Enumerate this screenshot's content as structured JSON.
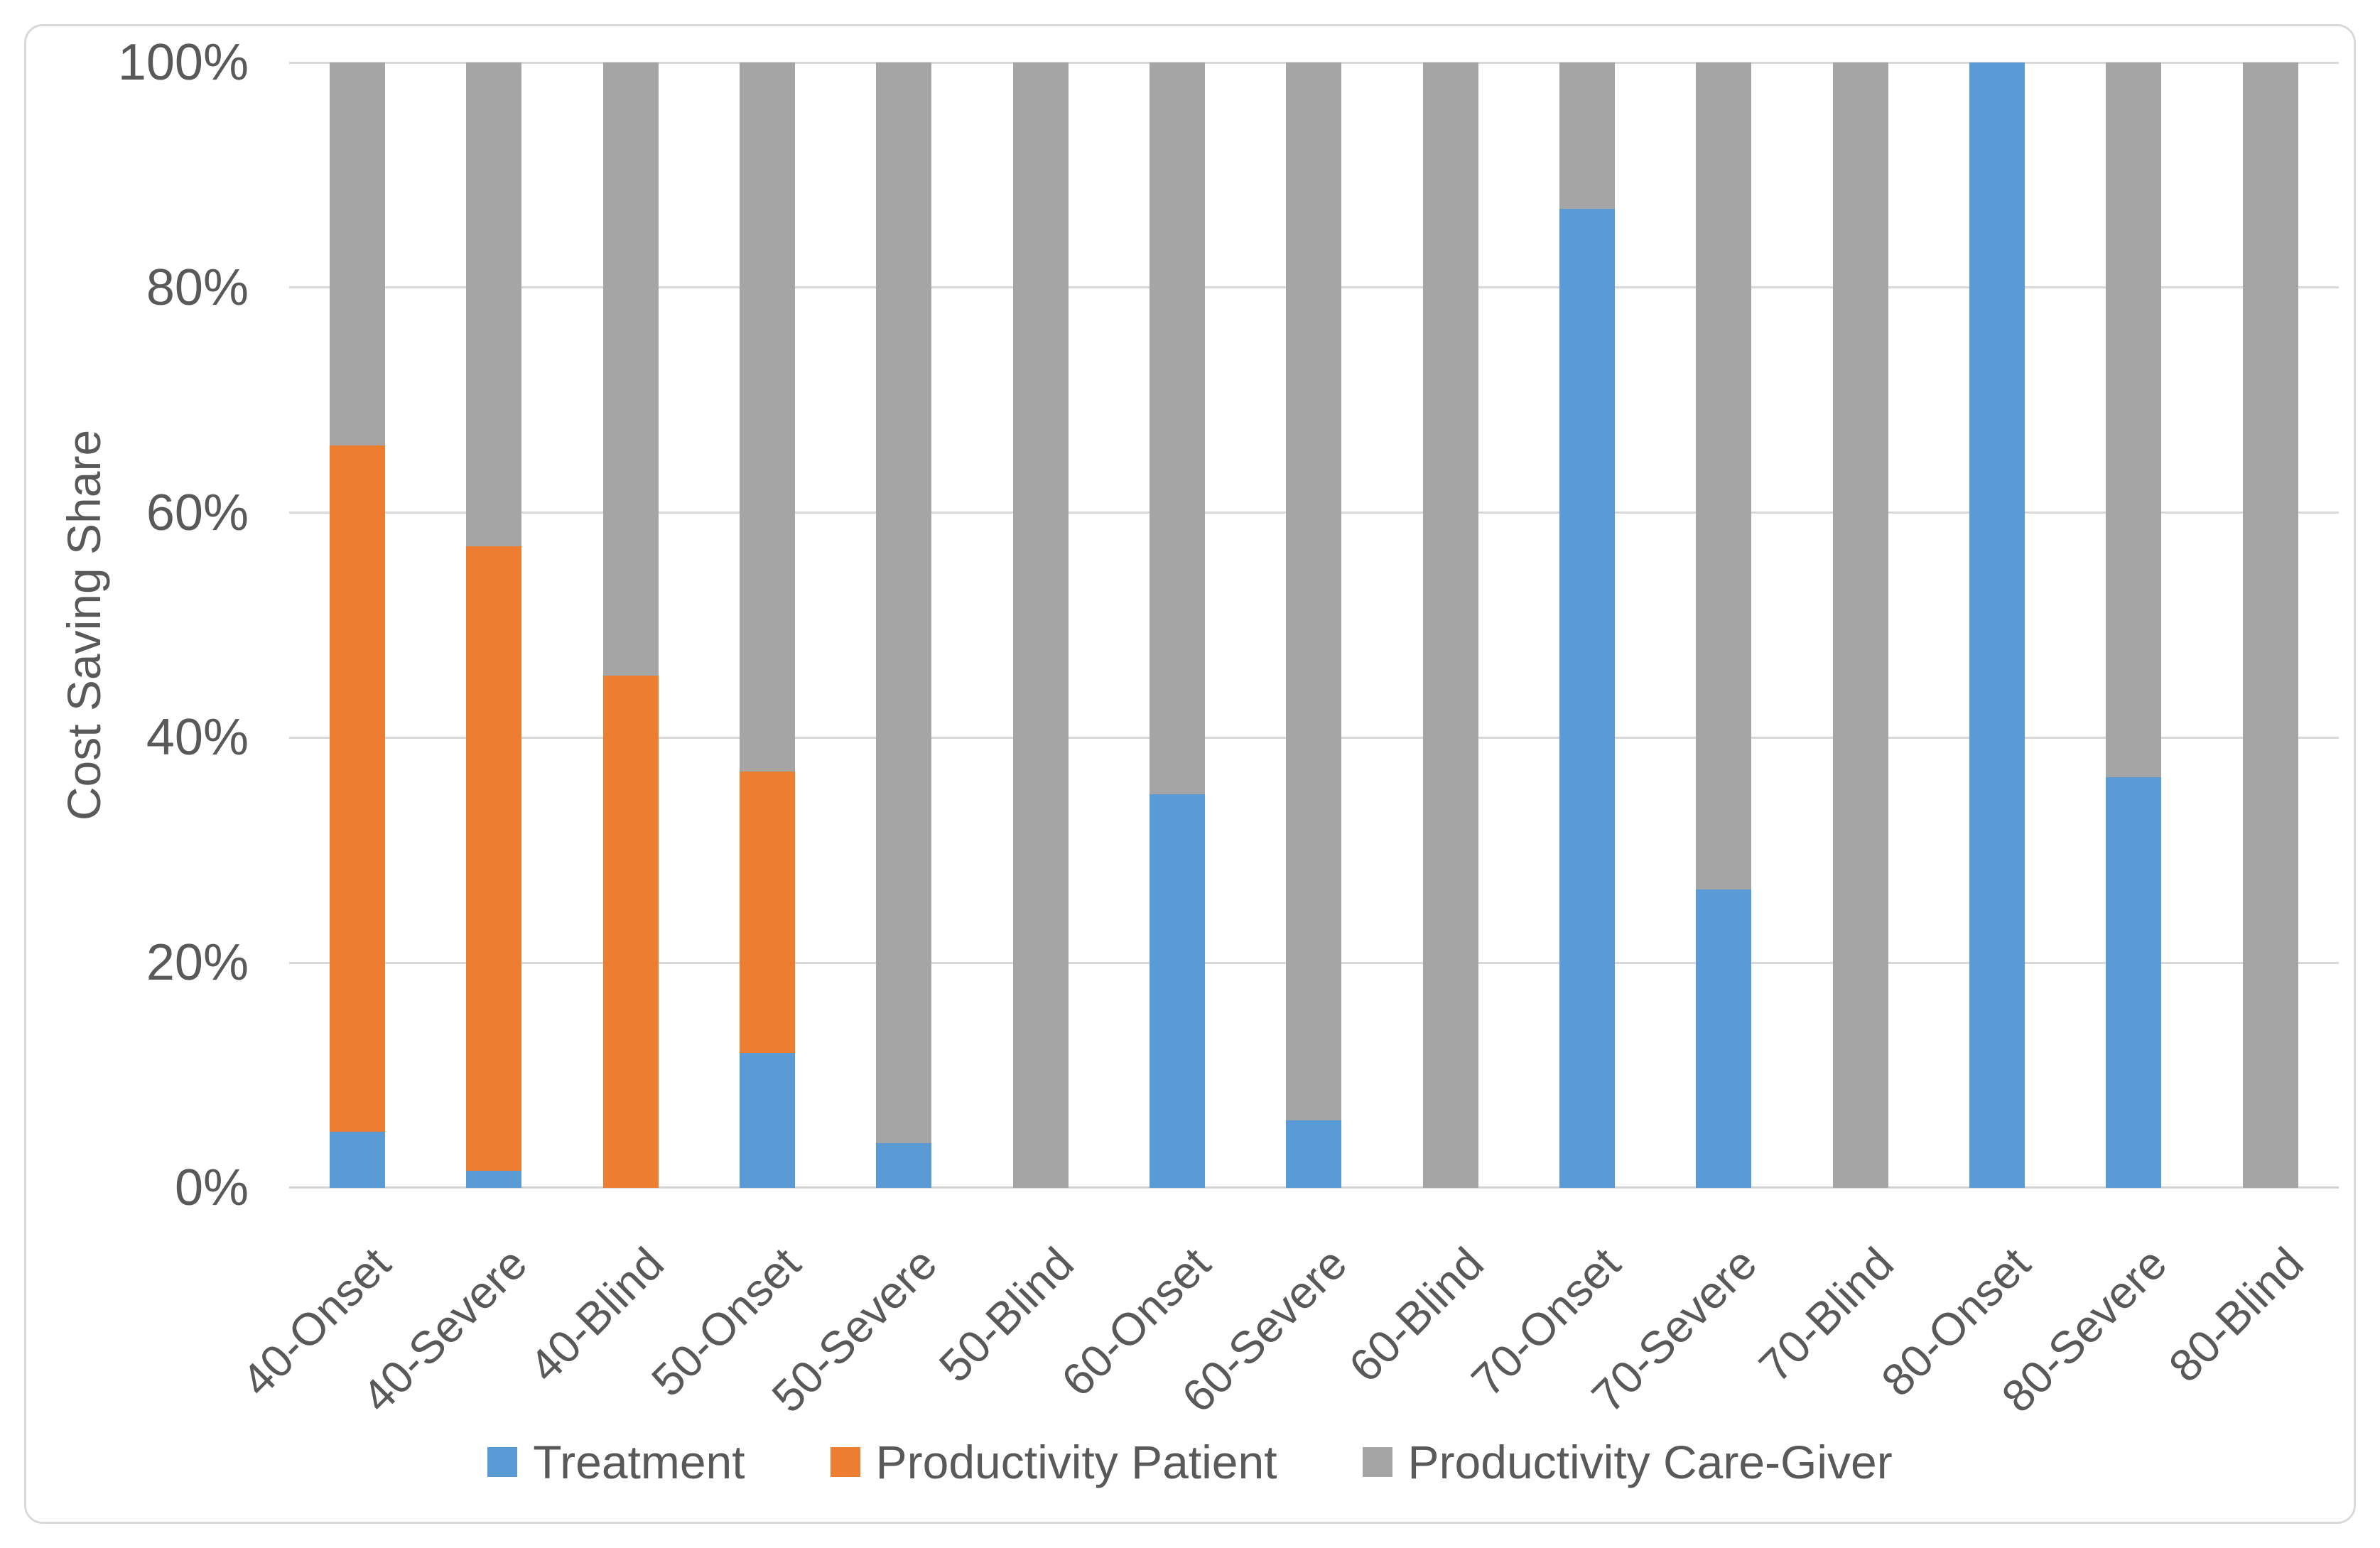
{
  "chart_data": {
    "type": "bar",
    "stacked": true,
    "percent_stacked": true,
    "title": "",
    "xlabel": "",
    "ylabel": "Cost Saving Share",
    "ylim": [
      0,
      100
    ],
    "grid": true,
    "legend_position": "bottom",
    "y_ticks": [
      "0%",
      "20%",
      "40%",
      "60%",
      "80%",
      "100%"
    ],
    "categories": [
      "40-Onset",
      "40-Severe",
      "40-Blind",
      "50-Onset",
      "50-Severe",
      "50-Blind",
      "60-Onset",
      "60-Severe",
      "60-Blind",
      "70-Onset",
      "70-Severe",
      "70-Blind",
      "80-Onset",
      "80-Severe",
      "80-Blind"
    ],
    "series": [
      {
        "name": "Treatment",
        "color": "#5B9BD5",
        "values": [
          5,
          1.5,
          0,
          12,
          4,
          0,
          35,
          6,
          0,
          87,
          26.5,
          0,
          100,
          36.5,
          0
        ]
      },
      {
        "name": "Productivity Patient",
        "color": "#ED7D31",
        "values": [
          61,
          55.5,
          45.5,
          25,
          0,
          0,
          0,
          0,
          0,
          0,
          0,
          0,
          0,
          0,
          0
        ]
      },
      {
        "name": "Productivity Care-Giver",
        "color": "#A5A5A5",
        "values": [
          34,
          43,
          54.5,
          63,
          96,
          100,
          65,
          94,
          100,
          13,
          73.5,
          100,
          0,
          63.5,
          100
        ]
      }
    ],
    "colors": {
      "gridline": "#D9D9D9",
      "axis_line": "#D3D3D3",
      "text": "#595959",
      "frame_border": "#D9D9D9",
      "background": "#FFFFFF"
    }
  }
}
